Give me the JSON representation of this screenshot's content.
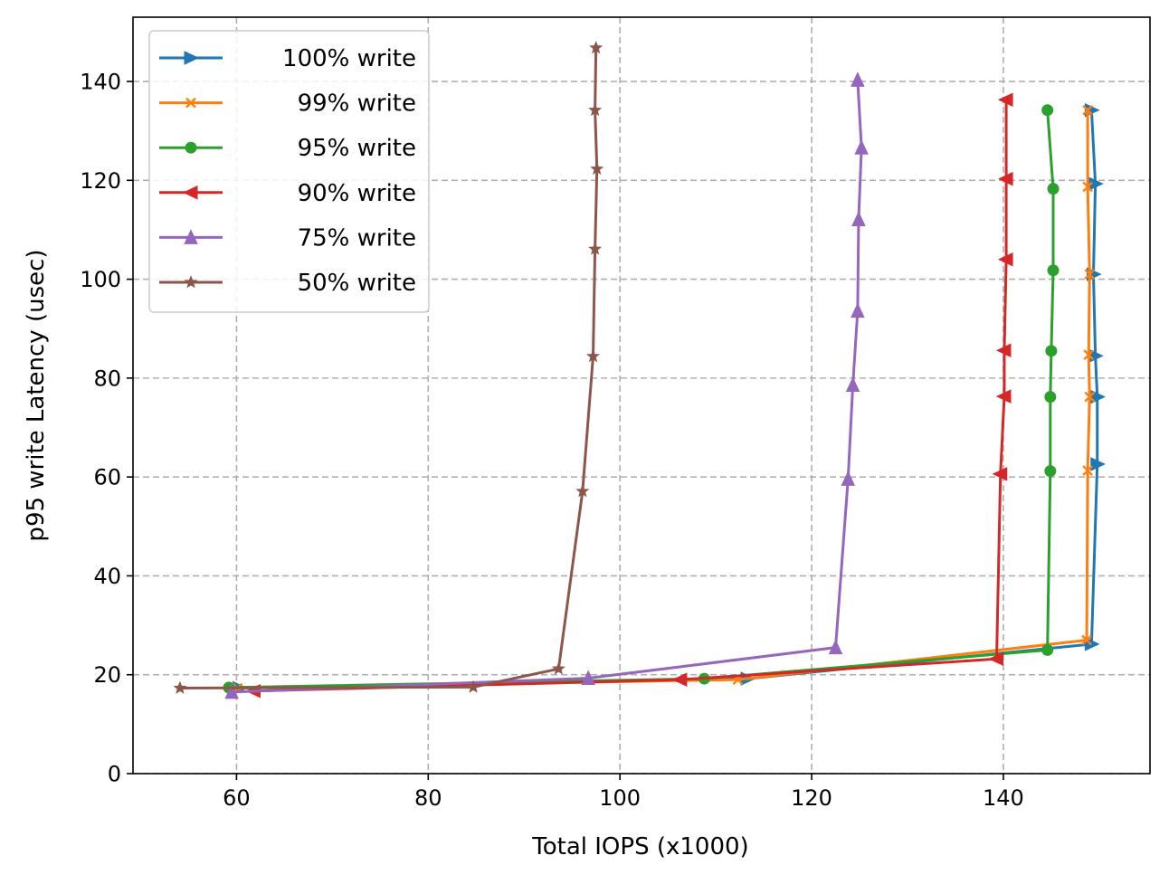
{
  "chart_data": {
    "type": "line",
    "title": "",
    "xlabel": "Total IOPS (x1000)",
    "ylabel": "p95 write Latency (usec)",
    "xlim": [
      49.2,
      155.3
    ],
    "ylim": [
      0,
      153
    ],
    "xticks": [
      60,
      80,
      100,
      120,
      140
    ],
    "yticks": [
      0,
      20,
      40,
      60,
      80,
      100,
      120,
      140
    ],
    "grid": true,
    "legend_position": "top-left",
    "series": [
      {
        "name": "100% write",
        "color": "#1f77b4",
        "marker": "triangle-right",
        "x": [
          60.3,
          113.3,
          149.2,
          149.8,
          149.8,
          149.6,
          149.4,
          149.6,
          149.2
        ],
        "y": [
          17.3,
          19.2,
          26.2,
          62.6,
          76.2,
          84.5,
          101.0,
          119.3,
          134.2
        ]
      },
      {
        "name": "99% write",
        "color": "#ff7f0e",
        "marker": "x",
        "x": [
          60.1,
          112.3,
          148.7,
          148.8,
          149.0,
          148.9,
          149.0,
          148.8,
          148.8
        ],
        "y": [
          17.3,
          19.0,
          27.0,
          61.3,
          76.2,
          84.7,
          101.0,
          118.7,
          134.2
        ]
      },
      {
        "name": "95% write",
        "color": "#2ca02c",
        "marker": "circle",
        "x": [
          59.2,
          108.8,
          144.6,
          144.9,
          144.9,
          145.0,
          145.2,
          145.2,
          144.6
        ],
        "y": [
          17.4,
          19.2,
          25.0,
          61.2,
          76.2,
          85.5,
          101.8,
          118.3,
          134.2
        ]
      },
      {
        "name": "90% write",
        "color": "#d62728",
        "marker": "triangle-left",
        "x": [
          61.8,
          106.3,
          139.3,
          139.7,
          140.1,
          140.1,
          140.3,
          140.3,
          140.3
        ],
        "y": [
          16.7,
          19.0,
          23.2,
          60.6,
          76.3,
          85.6,
          104.0,
          120.3,
          136.3
        ]
      },
      {
        "name": "75% write",
        "color": "#9467bd",
        "marker": "triangle-up",
        "x": [
          59.5,
          96.7,
          122.5,
          123.8,
          124.3,
          124.8,
          124.9,
          125.2,
          124.8
        ],
        "y": [
          16.5,
          19.3,
          25.5,
          59.6,
          78.6,
          93.6,
          112.1,
          126.6,
          140.3
        ]
      },
      {
        "name": "50% write",
        "color": "#8c564b",
        "marker": "star",
        "x": [
          54.1,
          84.7,
          93.6,
          96.1,
          97.2,
          97.4,
          97.6,
          97.4,
          97.5
        ],
        "y": [
          17.3,
          17.5,
          21.2,
          57.1,
          84.4,
          106.1,
          122.3,
          134.2,
          146.8
        ]
      }
    ]
  }
}
